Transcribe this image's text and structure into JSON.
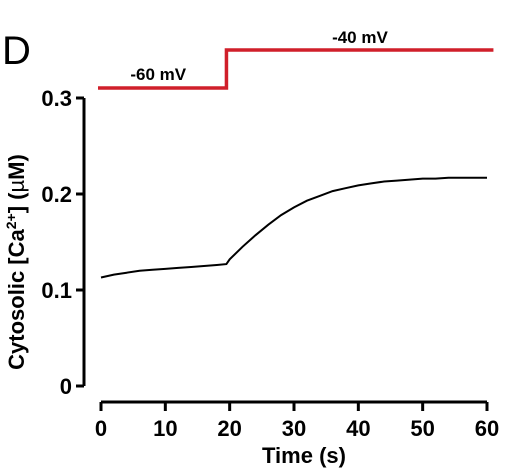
{
  "panel_letter": "D",
  "chart_data": {
    "type": "line",
    "xlabel": "Time (s)",
    "ylabel": "Cytosolic [Ca²⁺] (µM)",
    "ylabel_parts": {
      "pre": "Cytosolic [Ca",
      "sup": "2+",
      "post": "] (",
      "mu": "µ",
      "unit": "M)"
    },
    "xlim": [
      0,
      60
    ],
    "ylim": [
      0,
      0.3
    ],
    "x_ticks": [
      "0",
      "10",
      "20",
      "30",
      "40",
      "50",
      "60"
    ],
    "y_ticks": [
      "0",
      "0.1",
      "0.2",
      "0.3"
    ],
    "series": [
      {
        "x": [
          0,
          2,
          4,
          6,
          8,
          10,
          12,
          14,
          16,
          18,
          19.5,
          20,
          22,
          24,
          26,
          28,
          30,
          32,
          34,
          36,
          38,
          40,
          42,
          44,
          46,
          48,
          50,
          52,
          54,
          56,
          58,
          60
        ],
        "y": [
          0.113,
          0.116,
          0.118,
          0.12,
          0.121,
          0.122,
          0.123,
          0.124,
          0.125,
          0.126,
          0.127,
          0.132,
          0.145,
          0.157,
          0.168,
          0.178,
          0.186,
          0.193,
          0.198,
          0.203,
          0.206,
          0.209,
          0.211,
          0.213,
          0.214,
          0.215,
          0.216,
          0.216,
          0.217,
          0.217,
          0.217,
          0.217
        ]
      }
    ],
    "protocol": {
      "color": "#d01f2a",
      "steps": [
        {
          "label": "-60 mV",
          "x_start": 0,
          "x_end": 19.5
        },
        {
          "label": "-40 mV",
          "x_start": 19.5,
          "x_end": 61
        }
      ]
    },
    "grid": false
  }
}
